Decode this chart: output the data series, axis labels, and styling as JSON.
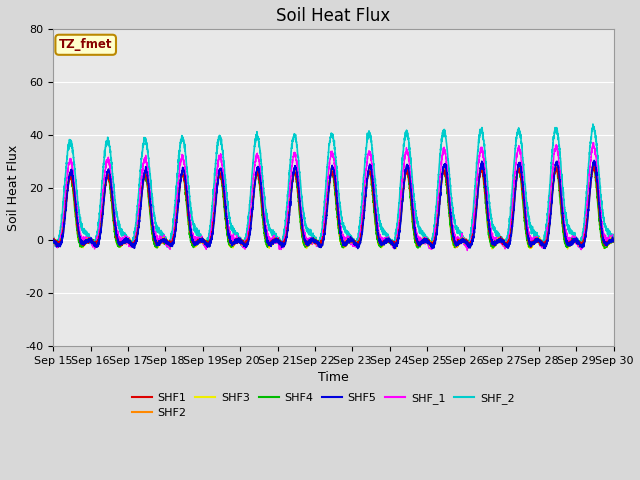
{
  "title": "Soil Heat Flux",
  "ylabel": "Soil Heat Flux",
  "xlabel": "Time",
  "ylim": [
    -40,
    80
  ],
  "xlim": [
    0,
    15
  ],
  "xtick_labels": [
    "Sep 15",
    "Sep 16",
    "Sep 17",
    "Sep 18",
    "Sep 19",
    "Sep 20",
    "Sep 21",
    "Sep 22",
    "Sep 23",
    "Sep 24",
    "Sep 25",
    "Sep 26",
    "Sep 27",
    "Sep 28",
    "Sep 29",
    "Sep 30"
  ],
  "annotation_text": "TZ_fmet",
  "annotation_bg": "#FFFFCC",
  "annotation_border": "#BB8800",
  "annotation_text_color": "#880000",
  "series": {
    "SHF1": {
      "color": "#DD0000",
      "lw": 1.0
    },
    "SHF2": {
      "color": "#FF8800",
      "lw": 1.0
    },
    "SHF3": {
      "color": "#EEEE00",
      "lw": 1.0
    },
    "SHF4": {
      "color": "#00BB00",
      "lw": 1.0
    },
    "SHF5": {
      "color": "#0000DD",
      "lw": 1.2
    },
    "SHF_1": {
      "color": "#FF00FF",
      "lw": 1.0
    },
    "SHF_2": {
      "color": "#00CCCC",
      "lw": 1.2
    }
  },
  "bg_color": "#D8D8D8",
  "plot_bg": "#E8E8E8",
  "grid_color": "#FFFFFF",
  "title_fontsize": 12,
  "axis_label_fontsize": 9,
  "tick_fontsize": 8
}
